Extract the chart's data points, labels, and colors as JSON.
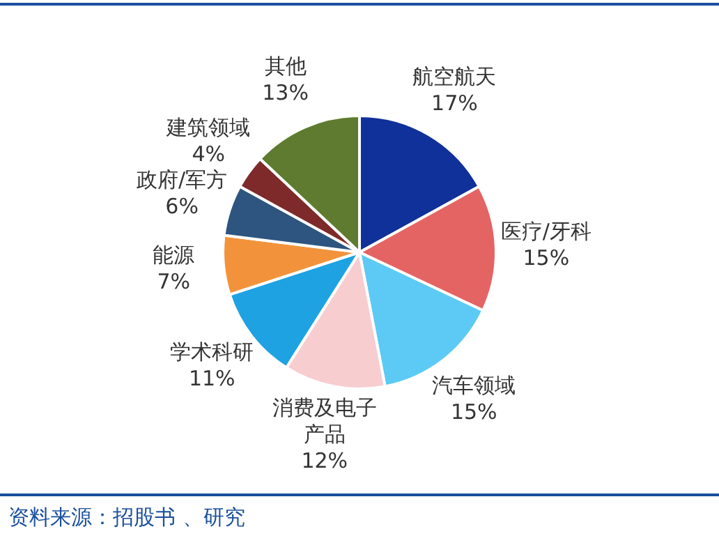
{
  "chart_data": {
    "type": "pie",
    "categories": [
      "航空航天",
      "医疗/牙科",
      "汽车领域",
      "消费及电子产品",
      "学术科研",
      "能源",
      "政府/军方",
      "建筑领域",
      "其他"
    ],
    "values": [
      17,
      15,
      15,
      12,
      11,
      7,
      6,
      4,
      13
    ],
    "colors": [
      "#10309a",
      "#e46464",
      "#5ccaf4",
      "#f8cdd0",
      "#1fa2e2",
      "#f2933c",
      "#2d5580",
      "#7e2a2a",
      "#5e7b2f"
    ],
    "value_labels": [
      "17%",
      "15%",
      "15%",
      "12%",
      "11%",
      "7%",
      "6%",
      "4%",
      "13%"
    ],
    "legend": false,
    "annotations": [
      "资料来源：招股书 、研究"
    ]
  }
}
